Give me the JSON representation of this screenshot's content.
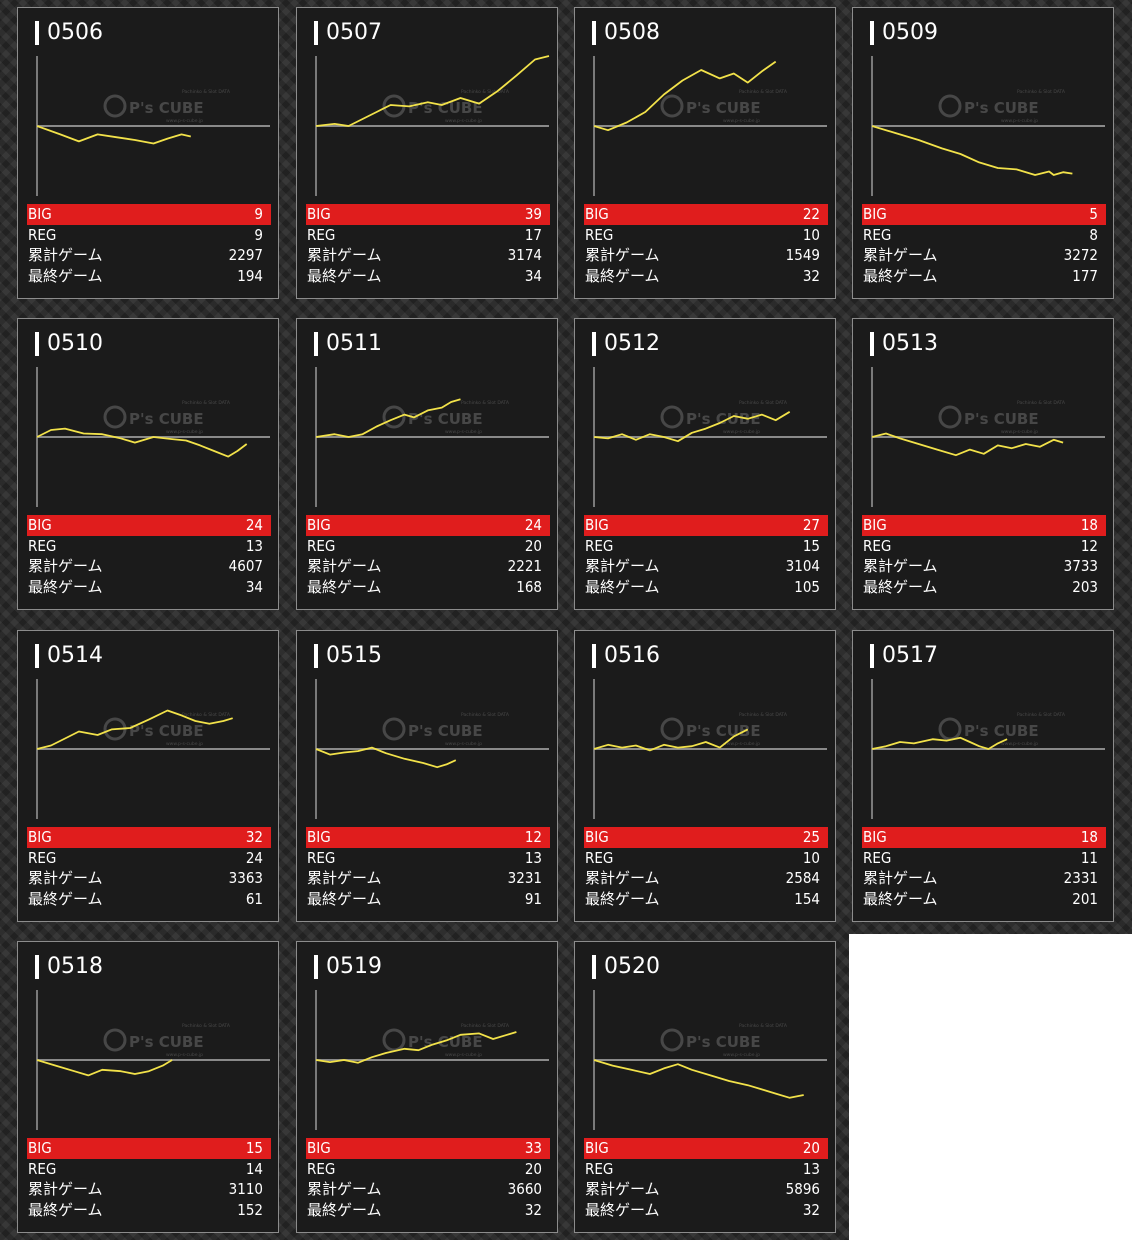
{
  "labels": {
    "big": "BIG",
    "reg": "REG",
    "total": "累計ゲーム",
    "last": "最終ゲーム"
  },
  "watermark": {
    "brand": "P's CUBE",
    "tagline_top": "Pachinko & Slot DATA",
    "tagline_bottom": "www.p-s-cube.jp"
  },
  "colors": {
    "graph_line": "#f2e24a",
    "big_row": "#e01d1d",
    "card_bg": "#1b1b1b",
    "card_border": "#8c8c8c"
  },
  "machines": [
    {
      "id": "0506",
      "big": "9",
      "reg": "9",
      "total": "2297",
      "last": "194",
      "graph": [
        [
          0,
          0
        ],
        [
          0.1,
          -0.12
        ],
        [
          0.18,
          -0.22
        ],
        [
          0.26,
          -0.12
        ],
        [
          0.34,
          -0.16
        ],
        [
          0.42,
          -0.2
        ],
        [
          0.5,
          -0.25
        ],
        [
          0.56,
          -0.18
        ],
        [
          0.62,
          -0.12
        ],
        [
          0.66,
          -0.15
        ]
      ]
    },
    {
      "id": "0507",
      "big": "39",
      "reg": "17",
      "total": "3174",
      "last": "34",
      "graph": [
        [
          0,
          0
        ],
        [
          0.08,
          0.03
        ],
        [
          0.14,
          0
        ],
        [
          0.2,
          0.1
        ],
        [
          0.26,
          0.2
        ],
        [
          0.32,
          0.3
        ],
        [
          0.4,
          0.28
        ],
        [
          0.48,
          0.34
        ],
        [
          0.54,
          0.3
        ],
        [
          0.62,
          0.4
        ],
        [
          0.7,
          0.32
        ],
        [
          0.78,
          0.5
        ],
        [
          0.86,
          0.72
        ],
        [
          0.94,
          0.95
        ],
        [
          1,
          1
        ]
      ]
    },
    {
      "id": "0508",
      "big": "22",
      "reg": "10",
      "total": "1549",
      "last": "32",
      "graph": [
        [
          0,
          0
        ],
        [
          0.06,
          -0.06
        ],
        [
          0.14,
          0.05
        ],
        [
          0.22,
          0.2
        ],
        [
          0.3,
          0.45
        ],
        [
          0.38,
          0.65
        ],
        [
          0.46,
          0.8
        ],
        [
          0.54,
          0.68
        ],
        [
          0.6,
          0.75
        ],
        [
          0.66,
          0.62
        ],
        [
          0.72,
          0.78
        ],
        [
          0.78,
          0.92
        ]
      ]
    },
    {
      "id": "0509",
      "big": "5",
      "reg": "8",
      "total": "3272",
      "last": "177",
      "graph": [
        [
          0,
          0
        ],
        [
          0.1,
          -0.1
        ],
        [
          0.2,
          -0.2
        ],
        [
          0.3,
          -0.32
        ],
        [
          0.38,
          -0.4
        ],
        [
          0.46,
          -0.52
        ],
        [
          0.54,
          -0.6
        ],
        [
          0.62,
          -0.62
        ],
        [
          0.7,
          -0.7
        ],
        [
          0.76,
          -0.65
        ],
        [
          0.78,
          -0.7
        ],
        [
          0.82,
          -0.66
        ],
        [
          0.86,
          -0.68
        ]
      ]
    },
    {
      "id": "0510",
      "big": "24",
      "reg": "13",
      "total": "4607",
      "last": "34",
      "graph": [
        [
          0,
          0
        ],
        [
          0.06,
          0.1
        ],
        [
          0.12,
          0.12
        ],
        [
          0.2,
          0.05
        ],
        [
          0.28,
          0.04
        ],
        [
          0.36,
          -0.02
        ],
        [
          0.42,
          -0.08
        ],
        [
          0.5,
          0
        ],
        [
          0.58,
          -0.03
        ],
        [
          0.64,
          -0.05
        ],
        [
          0.7,
          -0.12
        ],
        [
          0.76,
          -0.2
        ],
        [
          0.82,
          -0.28
        ],
        [
          0.86,
          -0.2
        ],
        [
          0.9,
          -0.1
        ]
      ]
    },
    {
      "id": "0511",
      "big": "24",
      "reg": "20",
      "total": "2221",
      "last": "168",
      "graph": [
        [
          0,
          0
        ],
        [
          0.08,
          0.04
        ],
        [
          0.14,
          0
        ],
        [
          0.2,
          0.04
        ],
        [
          0.26,
          0.15
        ],
        [
          0.32,
          0.24
        ],
        [
          0.38,
          0.32
        ],
        [
          0.42,
          0.28
        ],
        [
          0.48,
          0.38
        ],
        [
          0.54,
          0.42
        ],
        [
          0.58,
          0.5
        ],
        [
          0.62,
          0.54
        ]
      ]
    },
    {
      "id": "0512",
      "big": "27",
      "reg": "15",
      "total": "3104",
      "last": "105",
      "graph": [
        [
          0,
          0
        ],
        [
          0.06,
          -0.02
        ],
        [
          0.12,
          0.04
        ],
        [
          0.18,
          -0.04
        ],
        [
          0.24,
          0.04
        ],
        [
          0.3,
          0
        ],
        [
          0.36,
          -0.06
        ],
        [
          0.42,
          0.06
        ],
        [
          0.48,
          0.12
        ],
        [
          0.54,
          0.2
        ],
        [
          0.6,
          0.3
        ],
        [
          0.66,
          0.26
        ],
        [
          0.72,
          0.32
        ],
        [
          0.78,
          0.24
        ],
        [
          0.84,
          0.36
        ]
      ]
    },
    {
      "id": "0513",
      "big": "18",
      "reg": "12",
      "total": "3733",
      "last": "203",
      "graph": [
        [
          0,
          0
        ],
        [
          0.06,
          0.05
        ],
        [
          0.12,
          -0.02
        ],
        [
          0.2,
          -0.1
        ],
        [
          0.28,
          -0.18
        ],
        [
          0.36,
          -0.26
        ],
        [
          0.42,
          -0.18
        ],
        [
          0.48,
          -0.24
        ],
        [
          0.54,
          -0.12
        ],
        [
          0.6,
          -0.16
        ],
        [
          0.66,
          -0.1
        ],
        [
          0.72,
          -0.14
        ],
        [
          0.78,
          -0.04
        ],
        [
          0.82,
          -0.08
        ]
      ]
    },
    {
      "id": "0514",
      "big": "32",
      "reg": "24",
      "total": "3363",
      "last": "61",
      "graph": [
        [
          0,
          0
        ],
        [
          0.06,
          0.05
        ],
        [
          0.12,
          0.15
        ],
        [
          0.18,
          0.25
        ],
        [
          0.26,
          0.2
        ],
        [
          0.32,
          0.28
        ],
        [
          0.4,
          0.3
        ],
        [
          0.48,
          0.42
        ],
        [
          0.56,
          0.55
        ],
        [
          0.62,
          0.48
        ],
        [
          0.68,
          0.4
        ],
        [
          0.74,
          0.36
        ],
        [
          0.8,
          0.4
        ],
        [
          0.84,
          0.44
        ]
      ]
    },
    {
      "id": "0515",
      "big": "12",
      "reg": "13",
      "total": "3231",
      "last": "91",
      "graph": [
        [
          0,
          0
        ],
        [
          0.06,
          -0.08
        ],
        [
          0.12,
          -0.05
        ],
        [
          0.18,
          -0.03
        ],
        [
          0.24,
          0.02
        ],
        [
          0.3,
          -0.06
        ],
        [
          0.38,
          -0.14
        ],
        [
          0.46,
          -0.2
        ],
        [
          0.52,
          -0.26
        ],
        [
          0.56,
          -0.22
        ],
        [
          0.6,
          -0.16
        ]
      ]
    },
    {
      "id": "0516",
      "big": "25",
      "reg": "10",
      "total": "2584",
      "last": "154",
      "graph": [
        [
          0,
          0
        ],
        [
          0.06,
          0.06
        ],
        [
          0.12,
          0.02
        ],
        [
          0.18,
          0.05
        ],
        [
          0.24,
          -0.02
        ],
        [
          0.3,
          0.06
        ],
        [
          0.36,
          0.02
        ],
        [
          0.42,
          0.04
        ],
        [
          0.48,
          0.1
        ],
        [
          0.54,
          0.02
        ],
        [
          0.6,
          0.18
        ],
        [
          0.66,
          0.28
        ]
      ]
    },
    {
      "id": "0517",
      "big": "18",
      "reg": "11",
      "total": "2331",
      "last": "201",
      "graph": [
        [
          0,
          0
        ],
        [
          0.06,
          0.04
        ],
        [
          0.12,
          0.1
        ],
        [
          0.18,
          0.08
        ],
        [
          0.26,
          0.14
        ],
        [
          0.32,
          0.12
        ],
        [
          0.38,
          0.16
        ],
        [
          0.42,
          0.1
        ],
        [
          0.46,
          0.04
        ],
        [
          0.5,
          0
        ],
        [
          0.54,
          0.08
        ],
        [
          0.58,
          0.14
        ]
      ]
    },
    {
      "id": "0518",
      "big": "15",
      "reg": "14",
      "total": "3110",
      "last": "152",
      "graph": [
        [
          0,
          0
        ],
        [
          0.08,
          -0.08
        ],
        [
          0.16,
          -0.16
        ],
        [
          0.22,
          -0.22
        ],
        [
          0.28,
          -0.14
        ],
        [
          0.36,
          -0.16
        ],
        [
          0.42,
          -0.2
        ],
        [
          0.48,
          -0.16
        ],
        [
          0.54,
          -0.08
        ],
        [
          0.58,
          0
        ]
      ]
    },
    {
      "id": "0519",
      "big": "33",
      "reg": "20",
      "total": "3660",
      "last": "32",
      "graph": [
        [
          0,
          0
        ],
        [
          0.06,
          -0.03
        ],
        [
          0.12,
          0
        ],
        [
          0.18,
          -0.04
        ],
        [
          0.24,
          0.04
        ],
        [
          0.3,
          0.1
        ],
        [
          0.38,
          0.16
        ],
        [
          0.44,
          0.14
        ],
        [
          0.5,
          0.22
        ],
        [
          0.56,
          0.28
        ],
        [
          0.62,
          0.36
        ],
        [
          0.7,
          0.38
        ],
        [
          0.76,
          0.3
        ],
        [
          0.82,
          0.36
        ],
        [
          0.86,
          0.4
        ]
      ]
    },
    {
      "id": "0520",
      "big": "20",
      "reg": "13",
      "total": "5896",
      "last": "32",
      "graph": [
        [
          0,
          0
        ],
        [
          0.08,
          -0.08
        ],
        [
          0.16,
          -0.14
        ],
        [
          0.24,
          -0.2
        ],
        [
          0.3,
          -0.12
        ],
        [
          0.36,
          -0.06
        ],
        [
          0.42,
          -0.14
        ],
        [
          0.5,
          -0.22
        ],
        [
          0.58,
          -0.3
        ],
        [
          0.66,
          -0.36
        ],
        [
          0.72,
          -0.42
        ],
        [
          0.78,
          -0.48
        ],
        [
          0.84,
          -0.54
        ],
        [
          0.9,
          -0.5
        ]
      ]
    }
  ]
}
